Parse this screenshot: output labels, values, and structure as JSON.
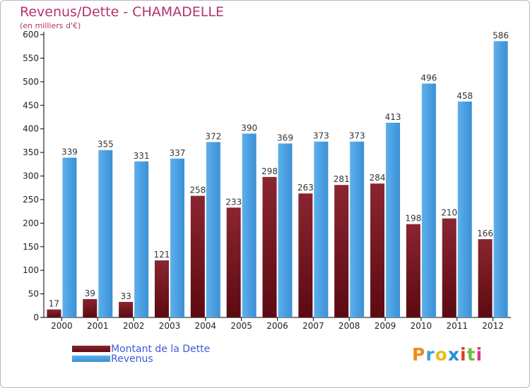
{
  "chart_data": {
    "type": "bar",
    "title": "Revenus/Dette - CHAMADELLE",
    "subtitle": "(en milliers d'€)",
    "categories": [
      "2000",
      "2001",
      "2002",
      "2003",
      "2004",
      "2005",
      "2006",
      "2007",
      "2008",
      "2009",
      "2010",
      "2011",
      "2012"
    ],
    "series": [
      {
        "name": "Montant de la Dette",
        "color": "#7a1520",
        "values": [
          17,
          39,
          33,
          121,
          258,
          233,
          298,
          263,
          281,
          284,
          198,
          210,
          166
        ]
      },
      {
        "name": "Revenus",
        "color": "#3d9ae0",
        "values": [
          339,
          355,
          331,
          337,
          372,
          390,
          369,
          373,
          373,
          413,
          496,
          458,
          586
        ]
      }
    ],
    "yticks": [
      0,
      50,
      100,
      150,
      200,
      250,
      300,
      350,
      400,
      450,
      500,
      550,
      600
    ],
    "ylim": [
      0,
      600
    ],
    "grid": false,
    "legend_position": "bottom-left"
  },
  "branding": {
    "logo_text": "Proxiti",
    "logo_colors": [
      "#f08a1c",
      "#37a2e0",
      "#e8bd1a",
      "#1f8fd8",
      "#e03c28",
      "#6bbf3a",
      "#d9338c"
    ]
  }
}
